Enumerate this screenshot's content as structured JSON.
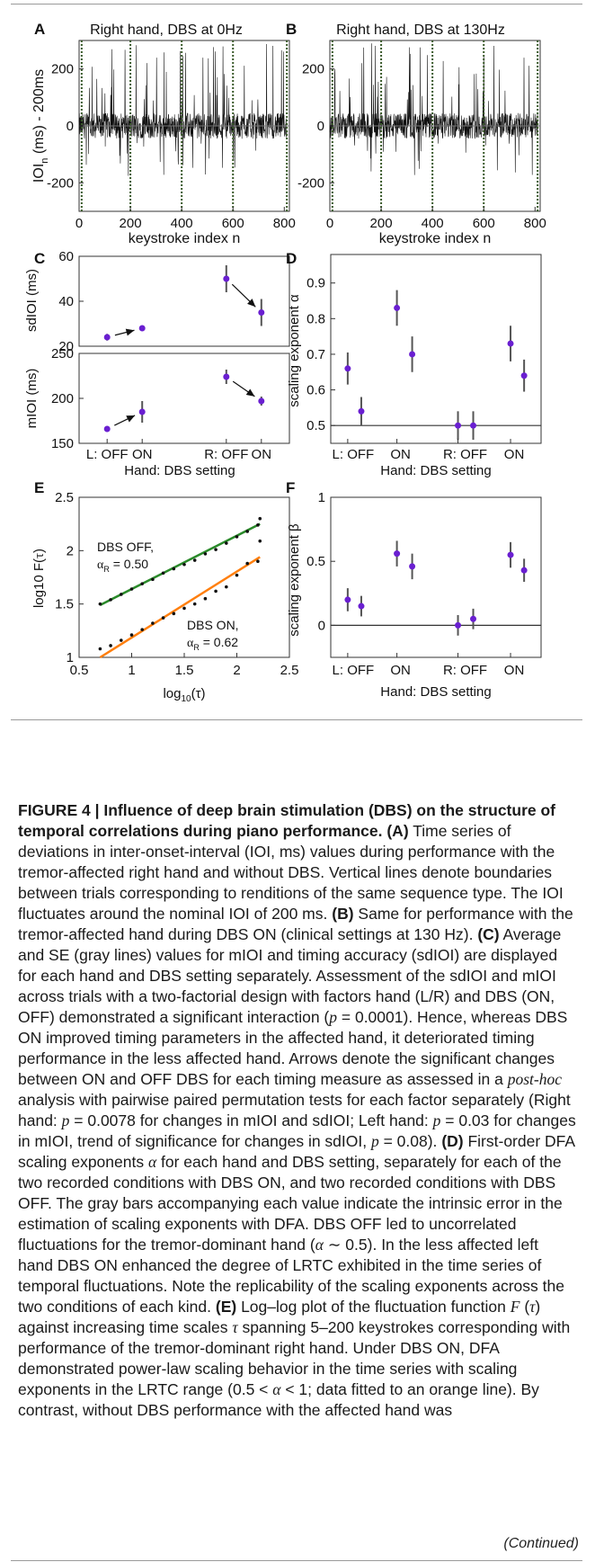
{
  "panels": {
    "A": {
      "label": "A",
      "title": "Right hand, DBS at 0Hz",
      "xlabel": "keystroke index n",
      "ylabel_sub": "n",
      "ylabel_rest": " (ms) - 200ms",
      "yticks": [
        "200",
        "0",
        "-200"
      ],
      "xticks": [
        "0",
        "200",
        "400",
        "600",
        "800"
      ]
    },
    "B": {
      "label": "B",
      "title": "Right hand, DBS at 130Hz",
      "xlabel": "keystroke index n",
      "yticks": [
        "200",
        "0",
        "-200"
      ],
      "xticks": [
        "0",
        "200",
        "400",
        "600",
        "800"
      ]
    },
    "C": {
      "label": "C",
      "top_ylabel": "sdIOI (ms)",
      "bottom_ylabel": "mIOI (ms)",
      "top_yticks": [
        "60",
        "40",
        "20"
      ],
      "bottom_yticks": [
        "250",
        "200",
        "150"
      ],
      "xticks": [
        "L: OFF",
        "ON",
        "R: OFF",
        "ON"
      ],
      "xlabel": "Hand: DBS setting"
    },
    "D": {
      "label": "D",
      "ylabel": "scaling exponent α",
      "yticks": [
        "0.9",
        "0.8",
        "0.7",
        "0.6",
        "0.5"
      ],
      "xticks": [
        "L: OFF",
        "ON",
        "R: OFF",
        "ON"
      ],
      "xlabel": "Hand: DBS setting"
    },
    "E": {
      "label": "E",
      "ylabel_pre": "log10 F(",
      "ylabel_tau": "τ",
      "ylabel_post": ")",
      "xlabel_pre": "log",
      "xlabel_sub": "10",
      "xlabel_post": "(τ)",
      "xticks": [
        "0.5",
        "1",
        "1.5",
        "2",
        "2.5"
      ],
      "yticks": [
        "2.5",
        "2",
        "1.5",
        "1"
      ],
      "off_label": "DBS OFF,",
      "off_alpha": " = 0.50",
      "on_label": "DBS ON,",
      "on_alpha": " = 0.62"
    },
    "F": {
      "label": "F",
      "ylabel": "scaling exponent β",
      "yticks": [
        "1",
        "0.5",
        "0"
      ],
      "xticks": [
        "L: OFF",
        "ON",
        "R: OFF",
        "ON"
      ],
      "xlabel": "Hand: DBS setting"
    }
  },
  "colors": {
    "marker": "#6a1fd1",
    "errorbar": "#555555",
    "fit_off": "#2a8a2a",
    "fit_on": "#ff7f0e",
    "trial_boundary": "#3a5a2a"
  },
  "chart_data": [
    {
      "type": "line",
      "panel": "A",
      "title": "Right hand, DBS at 0Hz",
      "xlabel": "keystroke index n",
      "ylabel": "IOIn (ms) - 200ms",
      "xlim": [
        0,
        820
      ],
      "ylim": [
        -300,
        300
      ],
      "trial_boundaries": [
        10,
        200,
        400,
        600,
        810
      ],
      "note": "noisy fluctuation around 0 with sparse positive spikes up to ~290 ms"
    },
    {
      "type": "line",
      "panel": "B",
      "title": "Right hand, DBS at 130Hz",
      "xlabel": "keystroke index n",
      "xlim": [
        0,
        820
      ],
      "ylim": [
        -300,
        300
      ],
      "trial_boundaries": [
        10,
        200,
        400,
        600,
        810
      ],
      "note": "noisy fluctuation around 0 with sparse positive spikes"
    },
    {
      "type": "scatter",
      "panel": "C-top",
      "ylabel": "sdIOI (ms)",
      "ylim": [
        20,
        60
      ],
      "categories": [
        "L: OFF",
        "ON",
        "R: OFF",
        "ON"
      ],
      "x": [
        0.8,
        1.8,
        4.2,
        5.2
      ],
      "values": [
        24,
        28,
        50,
        35
      ],
      "errors": [
        1.5,
        0.8,
        6,
        6
      ],
      "arrows": [
        [
          0,
          1
        ],
        [
          2,
          3
        ]
      ]
    },
    {
      "type": "scatter",
      "panel": "C-bottom",
      "ylabel": "mIOI (ms)",
      "ylim": [
        150,
        250
      ],
      "categories": [
        "L: OFF",
        "ON",
        "R: OFF",
        "ON"
      ],
      "x": [
        0.8,
        1.8,
        4.2,
        5.2
      ],
      "values": [
        166,
        185,
        224,
        197
      ],
      "errors": [
        3,
        12,
        8,
        5
      ],
      "arrows": [
        [
          0,
          1
        ],
        [
          2,
          3
        ]
      ]
    },
    {
      "type": "scatter",
      "panel": "D",
      "ylabel": "scaling exponent α",
      "ylim": [
        0.45,
        0.98
      ],
      "categories": [
        "L: OFF",
        "ON",
        "R: OFF",
        "ON"
      ],
      "x": [
        0.8,
        1.2,
        2.25,
        2.7,
        4.05,
        4.5,
        5.6,
        6.0
      ],
      "values": [
        0.66,
        0.54,
        0.83,
        0.7,
        0.5,
        0.5,
        0.73,
        0.64
      ],
      "errors": [
        0.045,
        0.04,
        0.05,
        0.05,
        0.04,
        0.04,
        0.05,
        0.045
      ],
      "reference_line": 0.5
    },
    {
      "type": "scatter",
      "panel": "E",
      "ylabel": "log10 F(τ)",
      "xlabel": "log10(τ)",
      "xlim": [
        0.5,
        2.5
      ],
      "ylim": [
        1,
        2.5
      ],
      "series": [
        {
          "name": "DBS OFF",
          "alpha": 0.5,
          "x": [
            0.7,
            0.8,
            0.9,
            1.0,
            1.1,
            1.2,
            1.3,
            1.4,
            1.5,
            1.6,
            1.7,
            1.8,
            1.9,
            2.0,
            2.1,
            2.2,
            2.22
          ],
          "values": [
            1.5,
            1.54,
            1.59,
            1.64,
            1.69,
            1.73,
            1.79,
            1.83,
            1.87,
            1.91,
            1.97,
            2.01,
            2.07,
            2.13,
            2.18,
            2.24,
            2.3
          ],
          "fit": [
            [
              0.7,
              1.49
            ],
            [
              2.22,
              2.25
            ]
          ]
        },
        {
          "name": "DBS ON",
          "alpha": 0.62,
          "x": [
            0.7,
            0.8,
            0.9,
            1.0,
            1.1,
            1.2,
            1.3,
            1.4,
            1.5,
            1.6,
            1.7,
            1.8,
            1.9,
            2.0,
            2.1,
            2.2,
            2.22
          ],
          "values": [
            1.08,
            1.11,
            1.16,
            1.21,
            1.26,
            1.32,
            1.37,
            1.41,
            1.46,
            1.5,
            1.55,
            1.62,
            1.66,
            1.77,
            1.88,
            1.9,
            2.09
          ],
          "fit": [
            [
              0.7,
              1.0
            ],
            [
              2.22,
              1.94
            ]
          ]
        }
      ]
    },
    {
      "type": "scatter",
      "panel": "F",
      "ylabel": "scaling exponent β",
      "ylim": [
        -0.25,
        1.0
      ],
      "categories": [
        "L: OFF",
        "ON",
        "R: OFF",
        "ON"
      ],
      "x": [
        0.8,
        1.2,
        2.25,
        2.7,
        4.05,
        4.5,
        5.6,
        6.0
      ],
      "values": [
        0.2,
        0.15,
        0.56,
        0.46,
        0.0,
        0.05,
        0.55,
        0.43
      ],
      "errors": [
        0.09,
        0.08,
        0.1,
        0.1,
        0.08,
        0.08,
        0.1,
        0.09
      ],
      "reference_line": 0.0
    }
  ],
  "caption": {
    "title": "FIGURE 4 | Influence of deep brain stimulation (DBS) on the structure of temporal correlations during piano performance. (A)",
    "a_text": "Time series of deviations in inter-onset-interval (IOI, ms) values during performance with the tremor-affected right hand and without DBS. Vertical lines denote boundaries between trials corresponding to renditions of the same sequence type. The IOI fluctuates around the nominal IOI of 200 ms.",
    "b_tag": "(B)",
    "b_text": "Same for performance with the tremor-affected hand during DBS ON (clinical settings at 130 Hz).",
    "c_tag": "(C)",
    "c_text1": "Average and SE (gray lines) values for mIOI and timing accuracy (sdIOI) are displayed for each hand and DBS setting separately. Assessment of the sdIOI and mIOI across trials with a two-factorial design with factors hand (L/R) and DBS (ON, OFF) demonstrated a significant interaction (",
    "c_p1": " = 0.0001",
    "c_text2": "). Hence, whereas DBS ON improved timing parameters in the affected hand, it deteriorated timing performance in the less affected hand. Arrows denote the significant changes between ON and OFF DBS for each timing measure as assessed in a ",
    "c_posthoc": "post-hoc",
    "c_text3": " analysis with pairwise paired permutation tests for each factor separately (Right hand: ",
    "c_p2": " = 0.0078",
    "c_text4": " for changes in mIOI and sdIOI; Left hand: ",
    "c_p3": " = 0.03",
    "c_text5": " for changes in mIOI, trend of significance for changes in sdIOI, ",
    "c_p4": " = 0.08",
    "c_text6": ").",
    "d_tag": "(D)",
    "d_text1": "First-order DFA scaling exponents ",
    "d_text2": " for each hand and DBS setting, separately for each of the two recorded conditions with DBS ON, and two recorded conditions with DBS OFF. The gray bars accompanying each value indicate the intrinsic error in the estimation of scaling exponents with DFA. DBS OFF led to uncorrelated fluctuations for the tremor-dominant hand (",
    "d_text3": " ∼ 0.5). In the less affected left hand DBS ON enhanced the degree of LRTC exhibited in the time series of temporal fluctuations. Note the replicability of the scaling exponents across the two conditions of each kind.",
    "e_tag": "(E)",
    "e_text1": "Log–log plot of the fluctuation function ",
    "e_text2": " against increasing time scales ",
    "e_text3": " spanning 5–200 keystrokes corresponding with performance of the tremor-dominant right hand. Under DBS ON, DFA demonstrated power-law scaling behavior in the time series with scaling exponents in the LRTC range (0.5 < ",
    "e_text4": " < 1; data fitted to an orange line). By contrast, without DBS performance with the affected hand was",
    "continued": "(Continued)"
  }
}
